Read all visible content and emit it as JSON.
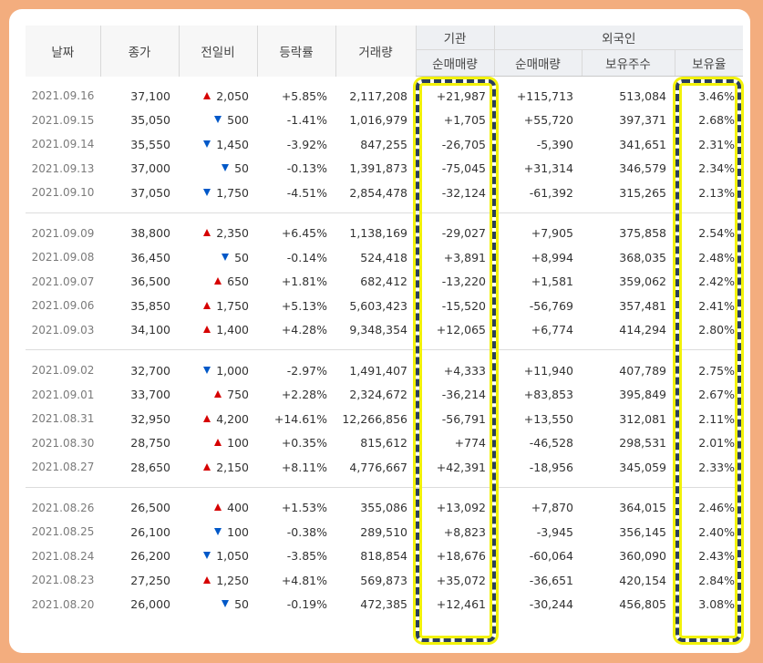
{
  "header": {
    "date": "날짜",
    "close": "종가",
    "change": "전일비",
    "rate": "등락률",
    "volume": "거래량",
    "institution": "기관",
    "foreign": "외국인",
    "inst_net": "순매매량",
    "foreign_net": "순매매량",
    "foreign_shares": "보유주수",
    "foreign_ratio": "보유율"
  },
  "colors": {
    "up": "#d60000",
    "down": "#0058c8",
    "highlight": "#f2f20a",
    "highlight_dash": "#2a3e5c",
    "frame": "#f3ad7e"
  },
  "groups": [
    {
      "rows": [
        {
          "date": "2021.09.16",
          "close": "37,100",
          "dir": "up",
          "change": "2,050",
          "rate": "+5.85%",
          "volume": "2,117,208",
          "inst": "+21,987",
          "frgn": "+115,713",
          "shares": "513,084",
          "ratio": "3.46%"
        },
        {
          "date": "2021.09.15",
          "close": "35,050",
          "dir": "down",
          "change": "500",
          "rate": "-1.41%",
          "volume": "1,016,979",
          "inst": "+1,705",
          "frgn": "+55,720",
          "shares": "397,371",
          "ratio": "2.68%"
        },
        {
          "date": "2021.09.14",
          "close": "35,550",
          "dir": "down",
          "change": "1,450",
          "rate": "-3.92%",
          "volume": "847,255",
          "inst": "-26,705",
          "frgn": "-5,390",
          "shares": "341,651",
          "ratio": "2.31%"
        },
        {
          "date": "2021.09.13",
          "close": "37,000",
          "dir": "down",
          "change": "50",
          "rate": "-0.13%",
          "volume": "1,391,873",
          "inst": "-75,045",
          "frgn": "+31,314",
          "shares": "346,579",
          "ratio": "2.34%"
        },
        {
          "date": "2021.09.10",
          "close": "37,050",
          "dir": "down",
          "change": "1,750",
          "rate": "-4.51%",
          "volume": "2,854,478",
          "inst": "-32,124",
          "frgn": "-61,392",
          "shares": "315,265",
          "ratio": "2.13%"
        }
      ]
    },
    {
      "rows": [
        {
          "date": "2021.09.09",
          "close": "38,800",
          "dir": "up",
          "change": "2,350",
          "rate": "+6.45%",
          "volume": "1,138,169",
          "inst": "-29,027",
          "frgn": "+7,905",
          "shares": "375,858",
          "ratio": "2.54%"
        },
        {
          "date": "2021.09.08",
          "close": "36,450",
          "dir": "down",
          "change": "50",
          "rate": "-0.14%",
          "volume": "524,418",
          "inst": "+3,891",
          "frgn": "+8,994",
          "shares": "368,035",
          "ratio": "2.48%"
        },
        {
          "date": "2021.09.07",
          "close": "36,500",
          "dir": "up",
          "change": "650",
          "rate": "+1.81%",
          "volume": "682,412",
          "inst": "-13,220",
          "frgn": "+1,581",
          "shares": "359,062",
          "ratio": "2.42%"
        },
        {
          "date": "2021.09.06",
          "close": "35,850",
          "dir": "up",
          "change": "1,750",
          "rate": "+5.13%",
          "volume": "5,603,423",
          "inst": "-15,520",
          "frgn": "-56,769",
          "shares": "357,481",
          "ratio": "2.41%"
        },
        {
          "date": "2021.09.03",
          "close": "34,100",
          "dir": "up",
          "change": "1,400",
          "rate": "+4.28%",
          "volume": "9,348,354",
          "inst": "+12,065",
          "frgn": "+6,774",
          "shares": "414,294",
          "ratio": "2.80%"
        }
      ]
    },
    {
      "rows": [
        {
          "date": "2021.09.02",
          "close": "32,700",
          "dir": "down",
          "change": "1,000",
          "rate": "-2.97%",
          "volume": "1,491,407",
          "inst": "+4,333",
          "frgn": "+11,940",
          "shares": "407,789",
          "ratio": "2.75%"
        },
        {
          "date": "2021.09.01",
          "close": "33,700",
          "dir": "up",
          "change": "750",
          "rate": "+2.28%",
          "volume": "2,324,672",
          "inst": "-36,214",
          "frgn": "+83,853",
          "shares": "395,849",
          "ratio": "2.67%"
        },
        {
          "date": "2021.08.31",
          "close": "32,950",
          "dir": "up",
          "change": "4,200",
          "rate": "+14.61%",
          "volume": "12,266,856",
          "inst": "-56,791",
          "frgn": "+13,550",
          "shares": "312,081",
          "ratio": "2.11%"
        },
        {
          "date": "2021.08.30",
          "close": "28,750",
          "dir": "up",
          "change": "100",
          "rate": "+0.35%",
          "volume": "815,612",
          "inst": "+774",
          "frgn": "-46,528",
          "shares": "298,531",
          "ratio": "2.01%"
        },
        {
          "date": "2021.08.27",
          "close": "28,650",
          "dir": "up",
          "change": "2,150",
          "rate": "+8.11%",
          "volume": "4,776,667",
          "inst": "+42,391",
          "frgn": "-18,956",
          "shares": "345,059",
          "ratio": "2.33%"
        }
      ]
    },
    {
      "rows": [
        {
          "date": "2021.08.26",
          "close": "26,500",
          "dir": "up",
          "change": "400",
          "rate": "+1.53%",
          "volume": "355,086",
          "inst": "+13,092",
          "frgn": "+7,870",
          "shares": "364,015",
          "ratio": "2.46%"
        },
        {
          "date": "2021.08.25",
          "close": "26,100",
          "dir": "down",
          "change": "100",
          "rate": "-0.38%",
          "volume": "289,510",
          "inst": "+8,823",
          "frgn": "-3,945",
          "shares": "356,145",
          "ratio": "2.40%"
        },
        {
          "date": "2021.08.24",
          "close": "26,200",
          "dir": "down",
          "change": "1,050",
          "rate": "-3.85%",
          "volume": "818,854",
          "inst": "+18,676",
          "frgn": "-60,064",
          "shares": "360,090",
          "ratio": "2.43%"
        },
        {
          "date": "2021.08.23",
          "close": "27,250",
          "dir": "up",
          "change": "1,250",
          "rate": "+4.81%",
          "volume": "569,873",
          "inst": "+35,072",
          "frgn": "-36,651",
          "shares": "420,154",
          "ratio": "2.84%"
        },
        {
          "date": "2021.08.20",
          "close": "26,000",
          "dir": "down",
          "change": "50",
          "rate": "-0.19%",
          "volume": "472,385",
          "inst": "+12,461",
          "frgn": "-30,244",
          "shares": "456,805",
          "ratio": "3.08%"
        }
      ]
    }
  ]
}
